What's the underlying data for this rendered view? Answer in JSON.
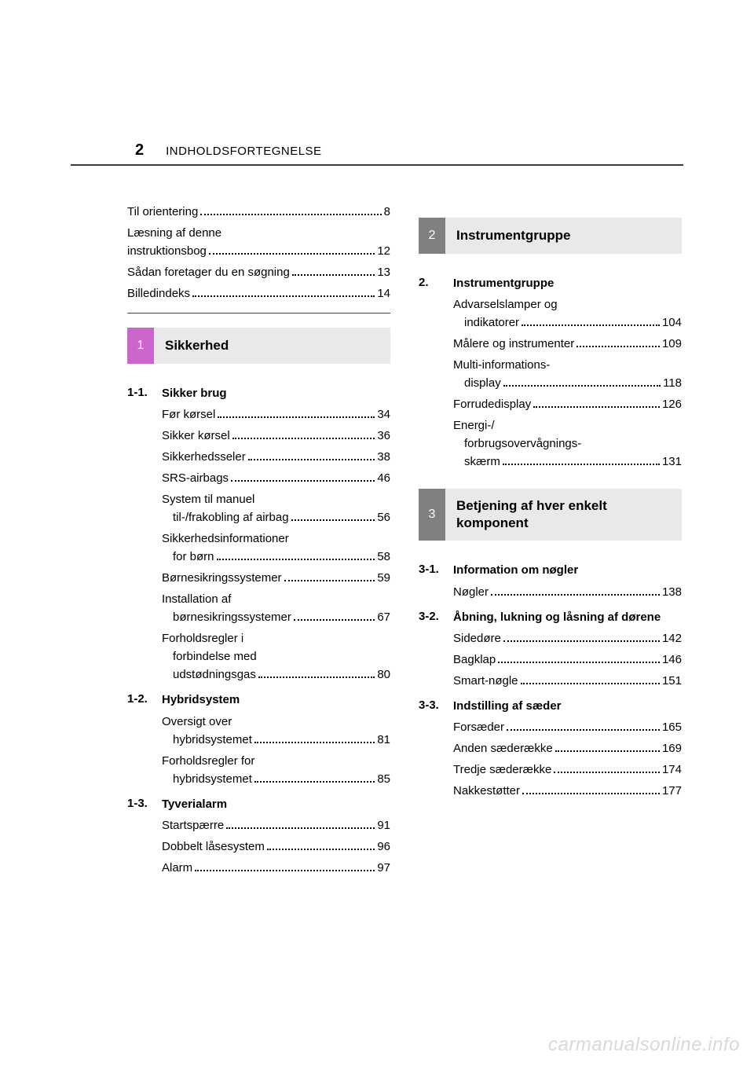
{
  "page_number": "2",
  "header_title": "INDHOLDSFORTEGNELSE",
  "intro": [
    {
      "label": "Til orientering",
      "page": "8"
    },
    {
      "label": "Læsning af denne",
      "cont": "instruktionsbog",
      "page": "12"
    },
    {
      "label": "Sådan foretager du en søgning",
      "page": "13"
    },
    {
      "label": "Billedindeks",
      "page": "14"
    }
  ],
  "chapters": [
    {
      "tab": "1",
      "tab_color": "#cc66cc",
      "title": "Sikkerhed",
      "column": "left",
      "sections": [
        {
          "num": "1-1.",
          "title": "Sikker brug",
          "items": [
            {
              "label": "Før kørsel",
              "page": "34"
            },
            {
              "label": "Sikker kørsel",
              "page": "36"
            },
            {
              "label": "Sikkerhedsseler",
              "page": "38"
            },
            {
              "label": "SRS-airbags",
              "page": "46"
            },
            {
              "label": "System til manuel",
              "cont": "til-/frakobling af airbag",
              "page": "56"
            },
            {
              "label": "Sikkerhedsinformationer",
              "cont": "for børn",
              "page": "58"
            },
            {
              "label": "Børnesikringssystemer",
              "page": "59"
            },
            {
              "label": "Installation af",
              "cont": "børnesikringssystemer",
              "page": "67"
            },
            {
              "label": "Forholdsregler i",
              "cont2": [
                "forbindelse med",
                "udstødningsgas"
              ],
              "page": "80"
            }
          ]
        },
        {
          "num": "1-2.",
          "title": "Hybridsystem",
          "items": [
            {
              "label": "Oversigt over",
              "cont": "hybridsystemet",
              "page": "81"
            },
            {
              "label": "Forholdsregler for",
              "cont": "hybridsystemet",
              "page": "85"
            }
          ]
        },
        {
          "num": "1-3.",
          "title": "Tyverialarm",
          "items": [
            {
              "label": "Startspærre",
              "page": "91"
            },
            {
              "label": "Dobbelt låsesystem",
              "page": "96"
            },
            {
              "label": "Alarm",
              "page": "97"
            }
          ]
        }
      ]
    },
    {
      "tab": "2",
      "tab_color": "#808080",
      "title": "Instrumentgruppe",
      "column": "right",
      "sections": [
        {
          "num": "2.",
          "title": "Instrumentgruppe",
          "items": [
            {
              "label": "Advarselslamper og",
              "cont": "indikatorer",
              "page": "104"
            },
            {
              "label": "Målere og instrumenter",
              "page": "109"
            },
            {
              "label": "Multi-informations-",
              "cont": "display",
              "page": "118"
            },
            {
              "label": "Forrudedisplay",
              "page": "126"
            },
            {
              "label": "Energi-/",
              "cont2": [
                "forbrugsovervågnings-",
                "skærm"
              ],
              "page": "131"
            }
          ]
        }
      ]
    },
    {
      "tab": "3",
      "tab_color": "#808080",
      "title": "Betjening af hver enkelt komponent",
      "column": "right",
      "tall": true,
      "sections": [
        {
          "num": "3-1.",
          "title": "Information om nøgler",
          "items": [
            {
              "label": "Nøgler",
              "page": "138"
            }
          ]
        },
        {
          "num": "3-2.",
          "title": "Åbning, lukning og låsning af dørene",
          "items": [
            {
              "label": "Sidedøre",
              "page": "142"
            },
            {
              "label": "Bagklap",
              "page": "146"
            },
            {
              "label": "Smart-nøgle",
              "page": "151"
            }
          ]
        },
        {
          "num": "3-3.",
          "title": "Indstilling af sæder",
          "items": [
            {
              "label": "Forsæder",
              "page": "165"
            },
            {
              "label": "Anden sæderække",
              "page": "169"
            },
            {
              "label": "Tredje sæderække",
              "page": "174"
            },
            {
              "label": "Nakkestøtter",
              "page": "177"
            }
          ]
        }
      ]
    }
  ],
  "watermark": "carmanualsonline.info",
  "styles": {
    "text_color": "#000000",
    "header_line_color": "#3a3a3a",
    "chapter_title_bg": "#e9e9e9",
    "body_fontsize": 15,
    "chapter_title_fontsize": 17,
    "page_number_fontsize": 20,
    "watermark_color": "#d9d9d9"
  }
}
